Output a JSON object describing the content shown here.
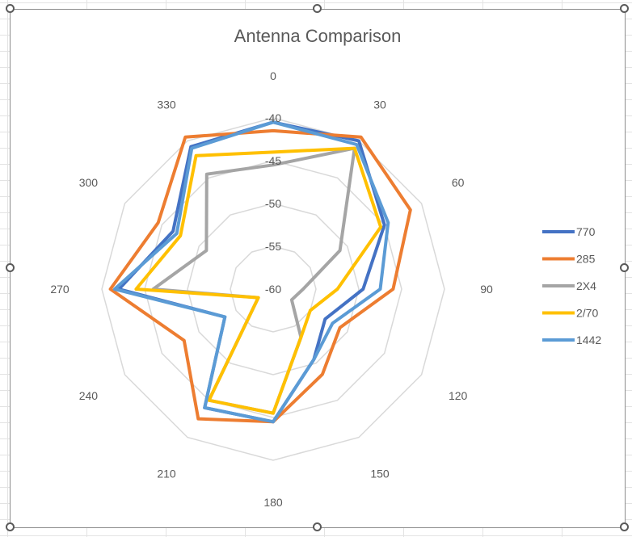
{
  "chart_data": {
    "type": "radar",
    "title": "Antenna Comparison",
    "categories": [
      "0",
      "30",
      "60",
      "90",
      "120",
      "150",
      "180",
      "210",
      "240",
      "270",
      "300",
      "330"
    ],
    "rlim": [
      -60,
      -40
    ],
    "r_ticks": [
      "-60",
      "-55",
      "-50",
      "-45",
      "-40"
    ],
    "grid": true,
    "legend_position": "right",
    "series": [
      {
        "name": "770",
        "color": "#4472c4",
        "values": [
          -40.5,
          -40,
          -45,
          -49.5,
          -53,
          -50.5,
          -44.5,
          -44,
          -53.5,
          -42,
          -46.5,
          -40.8
        ]
      },
      {
        "name": "285",
        "color": "#ed7d31",
        "values": [
          -41.5,
          -39.5,
          -41.5,
          -46,
          -51,
          -48.5,
          -44.5,
          -42.5,
          -48,
          -41,
          -44.5,
          -39.5
        ]
      },
      {
        "name": "2X4",
        "color": "#a5a5a5",
        "values": [
          -45.5,
          -41,
          -51,
          -56.5,
          -57.5,
          -53.5,
          -45.5,
          -45,
          -58,
          -46,
          -51,
          -44.5
        ]
      },
      {
        "name": "2/70",
        "color": "#ffc000",
        "values": [
          -44,
          -41,
          -45.5,
          -52.5,
          -55,
          -53.5,
          -45.5,
          -45,
          -58,
          -44,
          -47.5,
          -42
        ]
      },
      {
        "name": "1442",
        "color": "#5b9bd5",
        "values": [
          -40.5,
          -40.5,
          -44.5,
          -47.5,
          -52,
          -50.5,
          -44.5,
          -44,
          -53.5,
          -41.5,
          -47,
          -41
        ]
      }
    ]
  }
}
